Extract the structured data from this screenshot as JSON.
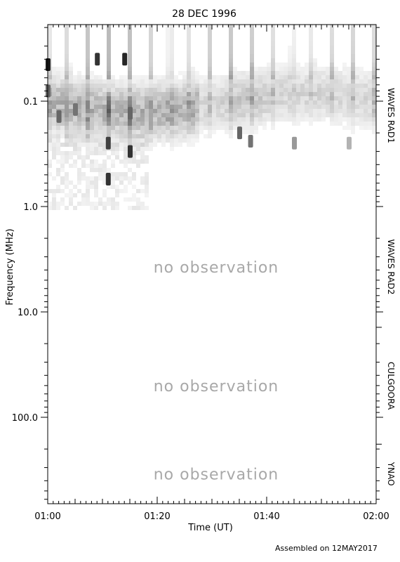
{
  "chart_data": {
    "type": "heatmap",
    "title": "28 DEC 1996",
    "xlabel": "Time (UT)",
    "ylabel": "Frequency (MHz)",
    "x_range": [
      "01:00",
      "02:00"
    ],
    "x_ticks": [
      "01:00",
      "01:20",
      "01:40",
      "02:00"
    ],
    "y_scale": "log",
    "y_ticks": [
      "0.1",
      "1.0",
      "10.0",
      "100.0"
    ],
    "footer": "Assembled on 12MAY2017",
    "panels": [
      {
        "label": "WAVES RAD1",
        "freq_range_mhz": [
          0.02,
          1.0
        ],
        "observed": true,
        "status": ""
      },
      {
        "label": "WAVES RAD2",
        "freq_range_mhz": [
          1.0,
          14.0
        ],
        "observed": false,
        "status": "no observation"
      },
      {
        "label": "CULGOORA",
        "freq_range_mhz": [
          14.0,
          180.0
        ],
        "observed": false,
        "status": "no observation"
      },
      {
        "label": "YNAO",
        "freq_range_mhz": [
          180.0,
          1000.0
        ],
        "observed": false,
        "status": "no observation"
      }
    ],
    "colormap": "grayscale (white = low intensity, black = high intensity)",
    "bursts": [
      {
        "time": "01:00",
        "freq_mhz": 0.045,
        "intensity": 0.9
      },
      {
        "time": "01:00",
        "freq_mhz": 0.08,
        "intensity": 0.6
      },
      {
        "time": "01:02",
        "freq_mhz": 0.14,
        "intensity": 0.6
      },
      {
        "time": "01:05",
        "freq_mhz": 0.12,
        "intensity": 0.55
      },
      {
        "time": "01:09",
        "freq_mhz": 0.04,
        "intensity": 0.8
      },
      {
        "time": "01:11",
        "freq_mhz": 0.25,
        "intensity": 0.75
      },
      {
        "time": "01:11",
        "freq_mhz": 0.55,
        "intensity": 0.8
      },
      {
        "time": "01:14",
        "freq_mhz": 0.04,
        "intensity": 0.85
      },
      {
        "time": "01:15",
        "freq_mhz": 0.3,
        "intensity": 0.8
      },
      {
        "time": "01:15",
        "freq_mhz": 0.13,
        "intensity": 0.6
      },
      {
        "time": "01:35",
        "freq_mhz": 0.2,
        "intensity": 0.6
      },
      {
        "time": "01:37",
        "freq_mhz": 0.24,
        "intensity": 0.55
      },
      {
        "time": "01:45",
        "freq_mhz": 0.25,
        "intensity": 0.4
      },
      {
        "time": "01:55",
        "freq_mhz": 0.25,
        "intensity": 0.3
      }
    ]
  }
}
